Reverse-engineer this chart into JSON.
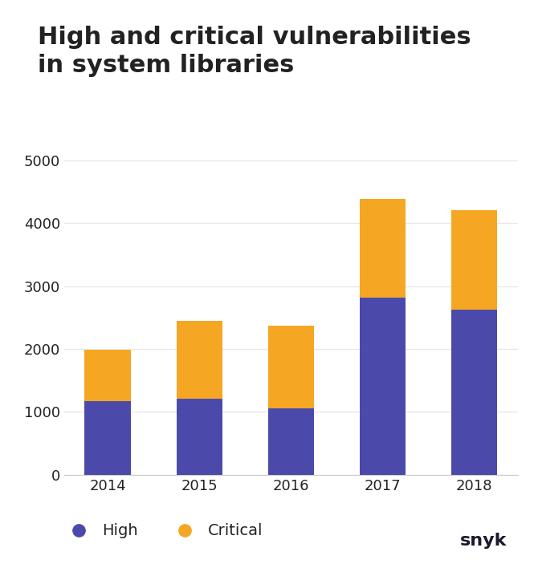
{
  "title": "High and critical vulnerabilities\nin system libraries",
  "categories": [
    "2014",
    "2015",
    "2016",
    "2017",
    "2018"
  ],
  "high_values": [
    1175,
    1210,
    1060,
    2820,
    2620
  ],
  "critical_values": [
    810,
    1240,
    1310,
    1560,
    1580
  ],
  "bar_color_high": "#4b4aab",
  "bar_color_critical": "#f5a623",
  "background_color": "#ffffff",
  "ylim": [
    0,
    5000
  ],
  "yticks": [
    0,
    1000,
    2000,
    3000,
    4000,
    5000
  ],
  "title_fontsize": 22,
  "tick_fontsize": 13,
  "legend_fontsize": 14,
  "grid_color": "#e8e8e8",
  "axis_color": "#cccccc",
  "bar_width": 0.5,
  "text_color": "#222222"
}
